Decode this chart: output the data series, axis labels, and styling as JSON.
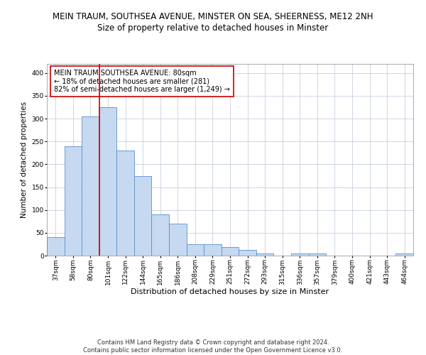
{
  "title": "MEIN TRAUM, SOUTHSEA AVENUE, MINSTER ON SEA, SHEERNESS, ME12 2NH",
  "subtitle": "Size of property relative to detached houses in Minster",
  "xlabel": "Distribution of detached houses by size in Minster",
  "ylabel": "Number of detached properties",
  "categories": [
    "37sqm",
    "58sqm",
    "80sqm",
    "101sqm",
    "122sqm",
    "144sqm",
    "165sqm",
    "186sqm",
    "208sqm",
    "229sqm",
    "251sqm",
    "272sqm",
    "293sqm",
    "315sqm",
    "336sqm",
    "357sqm",
    "379sqm",
    "400sqm",
    "421sqm",
    "443sqm",
    "464sqm"
  ],
  "values": [
    40,
    240,
    305,
    325,
    230,
    175,
    90,
    70,
    25,
    25,
    18,
    12,
    5,
    0,
    5,
    5,
    0,
    0,
    0,
    0,
    5
  ],
  "bar_color": "#c6d9f0",
  "bar_edge_color": "#5b8fc9",
  "marker_index": 2,
  "marker_color": "#cc0000",
  "annotation_text": "MEIN TRAUM SOUTHSEA AVENUE: 80sqm\n← 18% of detached houses are smaller (281)\n82% of semi-detached houses are larger (1,249) →",
  "annotation_box_color": "#ffffff",
  "annotation_box_edge": "#cc0000",
  "ylim": [
    0,
    420
  ],
  "yticks": [
    0,
    50,
    100,
    150,
    200,
    250,
    300,
    350,
    400
  ],
  "background_color": "#ffffff",
  "grid_color": "#c8d0de",
  "footnote": "Contains HM Land Registry data © Crown copyright and database right 2024.\nContains public sector information licensed under the Open Government Licence v3.0.",
  "title_fontsize": 8.5,
  "subtitle_fontsize": 8.5,
  "xlabel_fontsize": 8,
  "ylabel_fontsize": 7.5,
  "tick_fontsize": 6.5,
  "annotation_fontsize": 7,
  "footnote_fontsize": 6
}
